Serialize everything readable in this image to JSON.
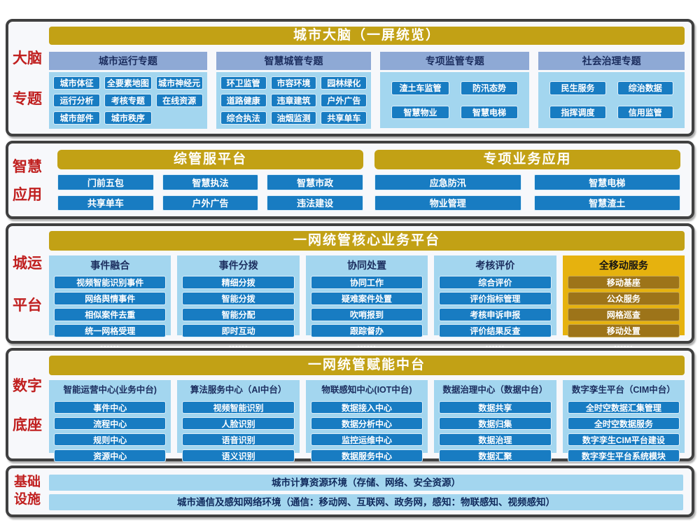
{
  "diagram_title": "城市大脑（一屏统览）",
  "colors": {
    "gold_banner": "#c2a115",
    "bright_gold_panel": "#e6b20e",
    "dark_gold_chip": "#9d7419",
    "blue_chip": "#187cc2",
    "light_blue_panel": "#a3d6ef",
    "periwinkle_header": "#8ea9d5",
    "red_side_label": "#c01f1f",
    "navy_text": "#1b2d5e"
  },
  "panels": [
    {
      "side_label": [
        "大脑",
        "专题"
      ],
      "banner": "城市大脑（一屏统览）",
      "groups": [
        {
          "header": "城市运行专题",
          "items": [
            "城市体征",
            "全要素地图",
            "城市神经元",
            "运行分析",
            "考核专题",
            "在线资源",
            "城市部件",
            "城市秩序"
          ]
        },
        {
          "header": "智慧城管专题",
          "items": [
            "环卫监管",
            "市容环境",
            "园林绿化",
            "道路健康",
            "违章建筑",
            "户外广告",
            "综合执法",
            "油烟监测",
            "共享单车"
          ]
        },
        {
          "header": "专项监管专题",
          "items": [
            "渣土车监管",
            "防汛态势",
            "智慧物业",
            "智慧电梯"
          ]
        },
        {
          "header": "社会治理专题",
          "items": [
            "民生服务",
            "综治数据",
            "指挥调度",
            "信用监管"
          ]
        }
      ]
    },
    {
      "side_label": [
        "智慧",
        "应用"
      ],
      "sections": [
        {
          "banner": "综管服平台",
          "items": [
            "门前五包",
            "智慧执法",
            "智慧市政",
            "共享单车",
            "户外广告",
            "违法建设"
          ]
        },
        {
          "banner": "专项业务应用",
          "items": [
            "应急防汛",
            "智慧电梯",
            "物业管理",
            "智慧渣土"
          ]
        }
      ]
    },
    {
      "side_label": [
        "城运",
        "平台"
      ],
      "banner": "一网统管核心业务平台",
      "columns": [
        {
          "header": "事件融合",
          "items": [
            "视频智能识别事件",
            "网络舆情事件",
            "相似案件去重",
            "统一网格受理"
          ],
          "more": "......"
        },
        {
          "header": "事件分拨",
          "items": [
            "精细分拨",
            "智能分拨",
            "智能分配",
            "即时互动"
          ],
          "more": "......"
        },
        {
          "header": "协同处置",
          "items": [
            "协同工作",
            "疑难案件处置",
            "吹哨报到",
            "跟踪督办"
          ],
          "more": "......"
        },
        {
          "header": "考核评价",
          "items": [
            "综合评价",
            "评价指标管理",
            "考核申诉申报",
            "评价结果反查"
          ],
          "more": "......"
        },
        {
          "header": "全移动服务",
          "items": [
            "移动基座",
            "公众服务",
            "网格巡查",
            "移动处置"
          ],
          "more": "......"
        }
      ]
    },
    {
      "side_label": [
        "数字",
        "底座"
      ],
      "banner": "一网统管赋能中台",
      "columns": [
        {
          "header": "智能运营中心(业务中台)",
          "items": [
            "事件中心",
            "流程中心",
            "规则中心",
            "资源中心"
          ]
        },
        {
          "header": "算法服务中心（AI中台）",
          "items": [
            "视频智能识别",
            "人脸识别",
            "语音识别",
            "语义识别"
          ]
        },
        {
          "header": "物联感知中心(IOT中台)",
          "items": [
            "数据接入中心",
            "数据分析中心",
            "监控运维中心",
            "数据服务中心"
          ]
        },
        {
          "header": "数据治理中心（数据中台）",
          "items": [
            "数据共享",
            "数据归集",
            "数据治理",
            "数据汇聚"
          ]
        },
        {
          "header": "数字孪生平台（CIM中台）",
          "items": [
            "全时空数据汇集管理",
            "全时空数据服务",
            "数字孪生CIM平台建设",
            "数字孪生平台系统模块"
          ]
        }
      ]
    },
    {
      "side_label": [
        "基础",
        "设施"
      ],
      "bars": [
        "城市计算资源环境（存储、网络、安全资源）",
        "城市通信及感知网络环境（通信：移动网、互联网、政务网，感知：物联感知、视频感知）"
      ]
    }
  ]
}
